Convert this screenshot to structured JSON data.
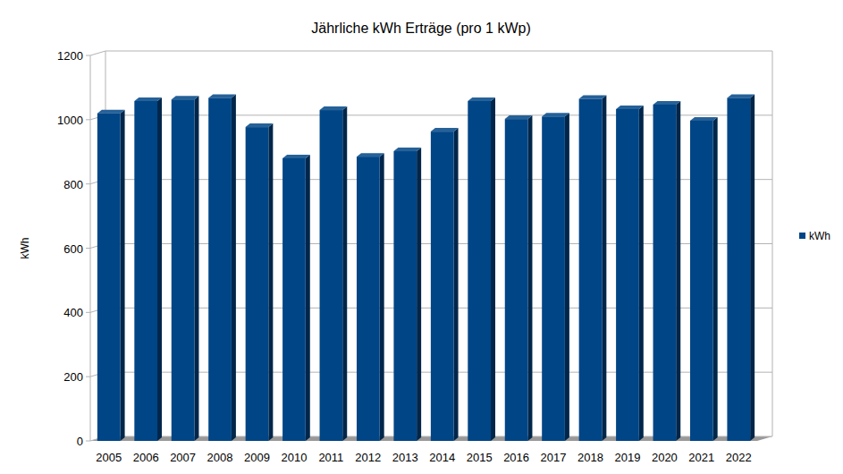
{
  "chart_data": {
    "type": "bar",
    "title": "Jährliche kWh Erträge (pro 1 kWp)",
    "y_label": "kWh",
    "categories": [
      "2005",
      "2006",
      "2007",
      "2008",
      "2009",
      "2010",
      "2011",
      "2012",
      "2013",
      "2014",
      "2015",
      "2016",
      "2017",
      "2018",
      "2019",
      "2020",
      "2021",
      "2022"
    ],
    "series": [
      {
        "name": "kWh",
        "color": "#004586",
        "values": [
          1020,
          1058,
          1063,
          1068,
          977,
          880,
          1030,
          885,
          902,
          963,
          1058,
          1002,
          1010,
          1065,
          1033,
          1047,
          997,
          1068
        ]
      }
    ],
    "ylim": [
      0,
      1200
    ],
    "yticks": [
      0,
      200,
      400,
      600,
      800,
      1000,
      1200
    ],
    "grid": true,
    "legend": "right"
  }
}
